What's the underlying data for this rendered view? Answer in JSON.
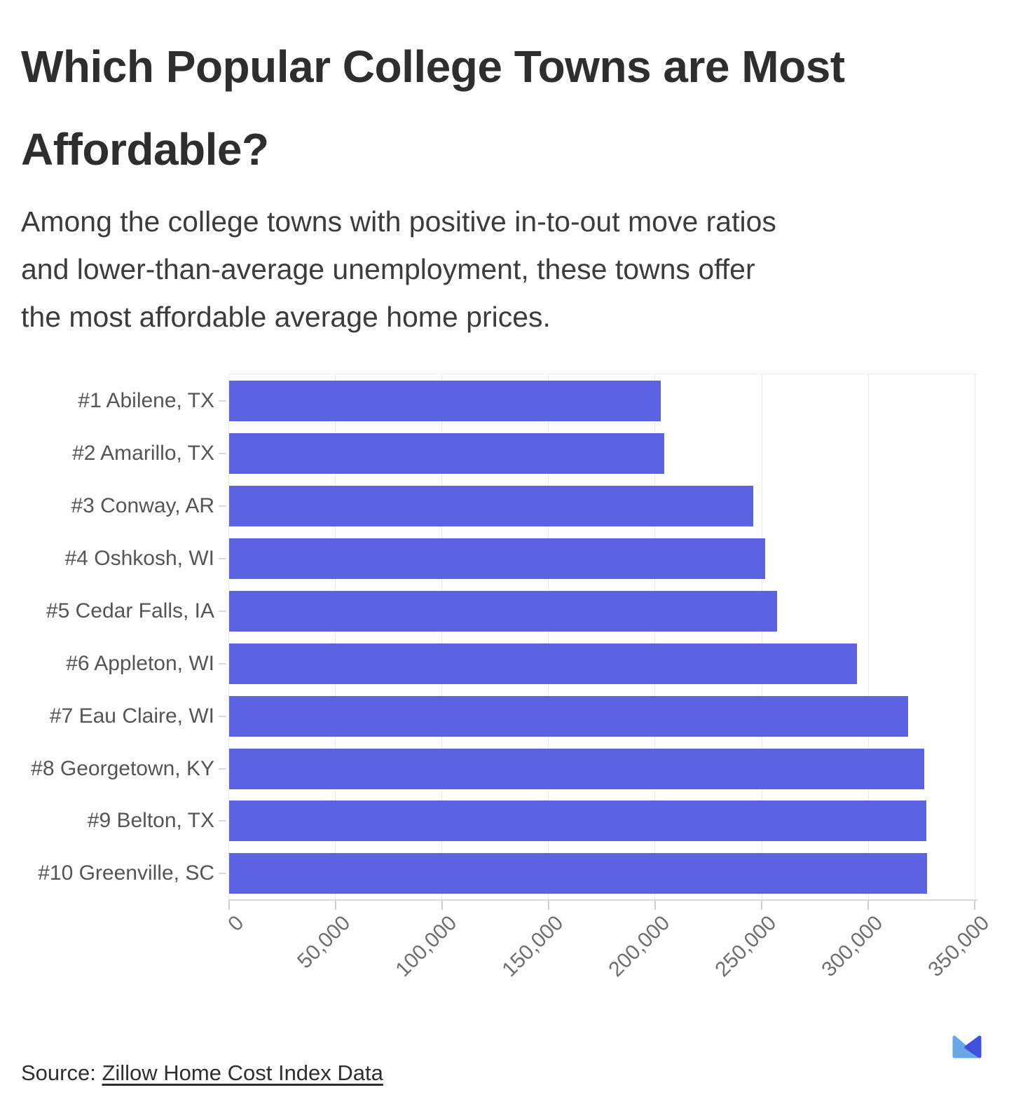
{
  "header": {
    "title_lines": [
      "Which Popular College Towns are Most",
      "Affordable?"
    ],
    "subtitle_lines": [
      "Among the college towns with positive in-to-out move ratios",
      "and lower-than-average unemployment, these towns offer",
      "the most affordable average home prices."
    ]
  },
  "chart_data": {
    "type": "bar",
    "orientation": "horizontal",
    "categories": [
      "#1 Abilene, TX",
      "#2 Amarillo, TX",
      "#3 Conway, AR",
      "#4 Oshkosh, WI",
      "#5 Cedar Falls, IA",
      "#6 Appleton, WI",
      "#7 Eau Claire, WI",
      "#8 Georgetown, KY",
      "#9 Belton, TX",
      "#10 Greenville, SC"
    ],
    "values": [
      202500,
      204000,
      246000,
      251500,
      257000,
      294500,
      318500,
      326000,
      327000,
      327500
    ],
    "x_ticks": {
      "values": [
        0,
        50000,
        100000,
        150000,
        200000,
        250000,
        300000,
        350000
      ],
      "labels": [
        "0",
        "50,000",
        "100,000",
        "150,000",
        "200,000",
        "250,000",
        "300,000",
        "350,000"
      ]
    },
    "xlim": [
      0,
      350000
    ],
    "bar_color": "#5c63e3",
    "grid": true,
    "legend": "none"
  },
  "footer": {
    "source_prefix": "Source: ",
    "source_link_label": "Zillow Home Cost Index Data"
  },
  "logo": {
    "light_color": "#68a7e8",
    "dark_color": "#4151df"
  }
}
